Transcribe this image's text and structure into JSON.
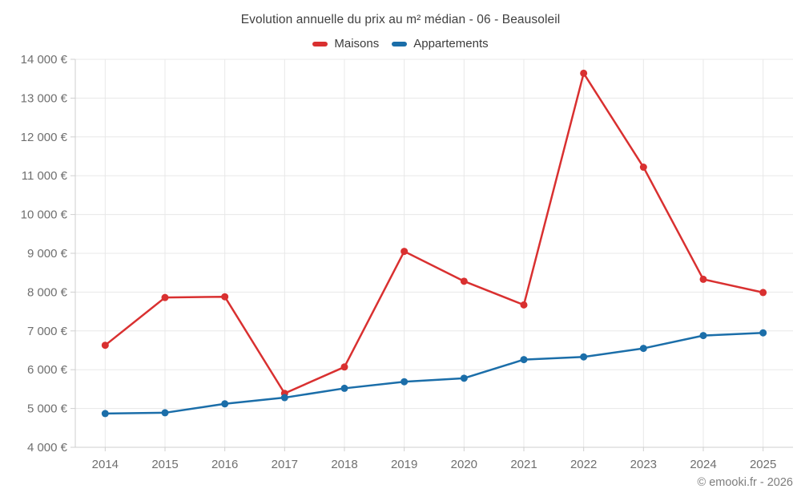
{
  "header": {
    "title": "Evolution annuelle du prix au m² médian - 06 - Beausoleil"
  },
  "footer": {
    "credit": "© emooki.fr - 2026"
  },
  "chart_data": {
    "type": "line",
    "title": "Evolution annuelle du prix au m² médian - 06 - Beausoleil",
    "categories": [
      "2014",
      "2015",
      "2016",
      "2017",
      "2018",
      "2019",
      "2020",
      "2021",
      "2022",
      "2023",
      "2024",
      "2025"
    ],
    "series": [
      {
        "name": "Maisons",
        "color": "#d93030",
        "values": [
          6630,
          7860,
          7880,
          5390,
          6070,
          9050,
          8280,
          7670,
          13640,
          11220,
          8330,
          7990
        ]
      },
      {
        "name": "Appartements",
        "color": "#1b6ea9",
        "values": [
          4870,
          4890,
          5120,
          5280,
          5520,
          5690,
          5780,
          6260,
          6330,
          6550,
          6880,
          6950
        ]
      }
    ],
    "xlabel": "",
    "ylabel": "",
    "ylim": [
      4000,
      14000
    ],
    "ytick_step": 1000,
    "ytick_labels": [
      "4 000 €",
      "5 000 €",
      "6 000 €",
      "7 000 €",
      "8 000 €",
      "9 000 €",
      "10 000 €",
      "11 000 €",
      "12 000 €",
      "13 000 €",
      "14 000 €"
    ],
    "grid": true,
    "legend_position": "top",
    "marker_radius": 4.5,
    "line_width": 2.5,
    "grid_color": "#e8e8e8",
    "axis_color": "#cfcfcf",
    "tick_label_color": "#6f6f6f"
  }
}
